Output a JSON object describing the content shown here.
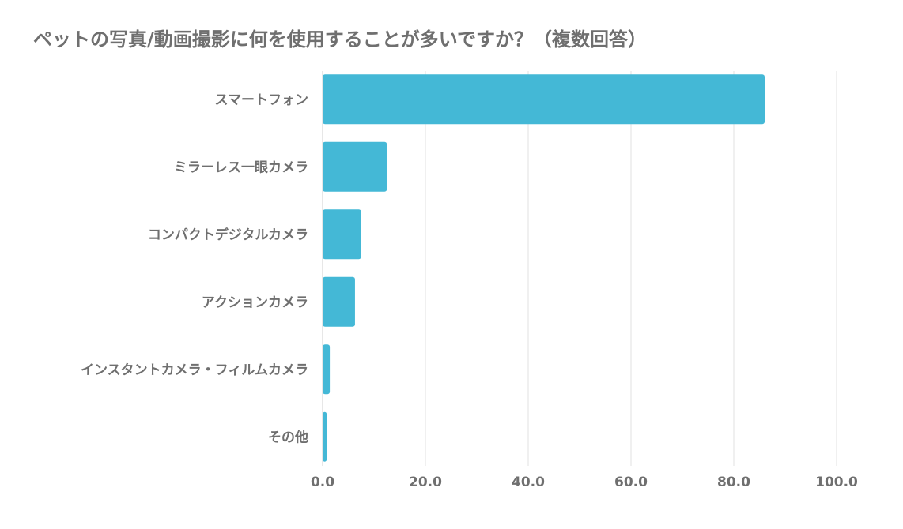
{
  "chart_data": {
    "type": "bar",
    "orientation": "horizontal",
    "title": "ペットの写真/動画撮影に何を使用することが多いですか？（複数回答）",
    "xlabel": "",
    "ylabel": "",
    "categories": [
      "スマートフォン",
      "ミラーレス一眼カメラ",
      "コンパクトデジタルカメラ",
      "アクションカメラ",
      "インスタントカメラ・フィルムカメラ",
      "その他"
    ],
    "values": [
      86.0,
      12.5,
      7.5,
      6.3,
      1.4,
      0.8
    ],
    "xlim": [
      0,
      100
    ],
    "ticks": [
      "0.0",
      "20.0",
      "40.0",
      "60.0",
      "80.0",
      "100.0"
    ],
    "tick_values": [
      0,
      20,
      40,
      60,
      80,
      100
    ],
    "grid": true,
    "legend": "none",
    "colors": {
      "bar": "#44b8d6",
      "grid": "#e2e2e2",
      "text": "#6f6f6f"
    }
  }
}
